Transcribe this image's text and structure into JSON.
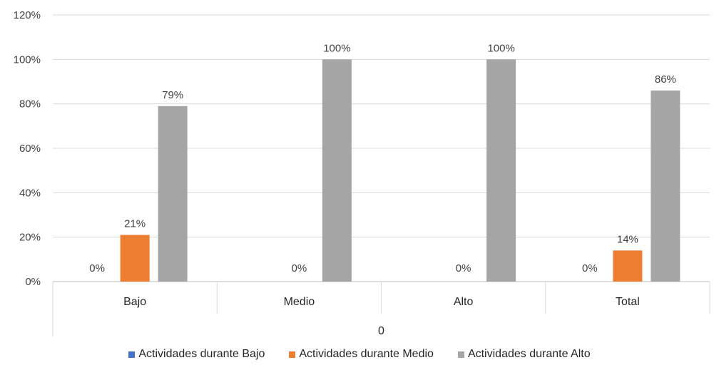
{
  "chart_data": {
    "type": "bar",
    "title": "",
    "xlabel": "0",
    "ylabel": "",
    "categories": [
      "Bajo",
      "Medio",
      "Alto",
      "Total"
    ],
    "ylim": [
      0,
      120
    ],
    "yticks": [
      "0%",
      "20%",
      "40%",
      "60%",
      "80%",
      "100%",
      "120%"
    ],
    "grid": true,
    "legend_position": "bottom",
    "series": [
      {
        "name": "Actividades durante Bajo",
        "color": "#4472C4",
        "values": [
          0,
          null,
          null,
          0
        ],
        "labels": [
          "0%",
          "",
          "",
          "0%"
        ]
      },
      {
        "name": "Actividades durante Medio",
        "color": "#ED7D31",
        "values": [
          21,
          0,
          0,
          14
        ],
        "labels": [
          "21%",
          "0%",
          "0%",
          "14%"
        ]
      },
      {
        "name": "Actividades durante Alto",
        "color": "#A5A5A5",
        "values": [
          79,
          100,
          100,
          86
        ],
        "labels": [
          "79%",
          "100%",
          "100%",
          "86%"
        ]
      }
    ]
  }
}
